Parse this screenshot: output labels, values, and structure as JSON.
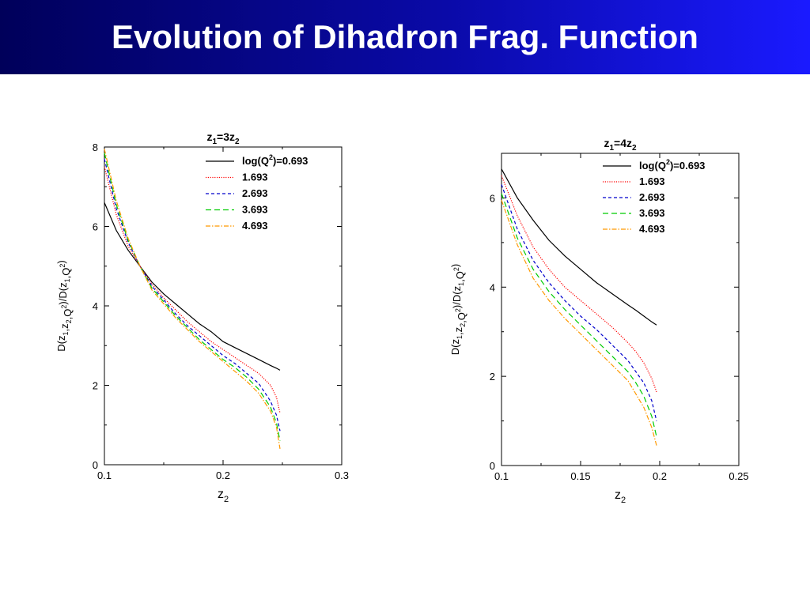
{
  "slide": {
    "title": "Evolution of Dihadron Frag. Function"
  },
  "chart_data": [
    {
      "type": "line",
      "title": {
        "base": "z",
        "sub1": "1",
        "mid": "=3z",
        "sub2": "2"
      },
      "xlabel": {
        "base": "z",
        "sub": "2"
      },
      "ylabel": "D(z1,z2,Q2)/D(z1,Q2)",
      "xlim": [
        0.1,
        0.3
      ],
      "ylim": [
        0,
        8
      ],
      "xticks": [
        0.1,
        0.2,
        0.3
      ],
      "xtick_labels": [
        "0.1",
        "0.2",
        "0.3"
      ],
      "yticks": [
        0,
        2,
        4,
        6,
        8
      ],
      "ytick_labels": [
        "0",
        "2",
        "4",
        "6",
        "8"
      ],
      "grid": false,
      "legend_position": "top-right",
      "x": [
        0.1,
        0.11,
        0.12,
        0.13,
        0.14,
        0.15,
        0.16,
        0.17,
        0.18,
        0.19,
        0.2,
        0.21,
        0.22,
        0.23,
        0.24,
        0.245,
        0.248
      ],
      "series": [
        {
          "name": "log(Q2)=0.693",
          "legend_label": {
            "pre": "log(Q",
            "sup": "2",
            "post": ")=0.693"
          },
          "color": "#000000",
          "dash": "",
          "values": [
            6.6,
            5.9,
            5.4,
            5.0,
            4.6,
            4.3,
            4.05,
            3.8,
            3.55,
            3.35,
            3.1,
            2.95,
            2.8,
            2.65,
            2.5,
            2.43,
            2.38
          ]
        },
        {
          "name": "1.693",
          "color": "#ff0000",
          "dash": "1.2 1.6",
          "values": [
            7.5,
            6.3,
            5.5,
            5.0,
            4.55,
            4.2,
            3.9,
            3.6,
            3.35,
            3.1,
            2.9,
            2.7,
            2.5,
            2.3,
            2.0,
            1.7,
            1.3
          ]
        },
        {
          "name": "2.693",
          "color": "#0000cc",
          "dash": "4 3",
          "values": [
            7.7,
            6.45,
            5.6,
            5.0,
            4.5,
            4.15,
            3.8,
            3.5,
            3.25,
            3.0,
            2.75,
            2.55,
            2.3,
            2.05,
            1.6,
            1.25,
            0.85
          ]
        },
        {
          "name": "3.693",
          "color": "#00cc00",
          "dash": "7 4",
          "values": [
            7.85,
            6.55,
            5.65,
            5.0,
            4.45,
            4.1,
            3.75,
            3.45,
            3.15,
            2.9,
            2.65,
            2.45,
            2.2,
            1.9,
            1.45,
            1.05,
            0.6
          ]
        },
        {
          "name": "4.693",
          "color": "#ff9900",
          "dash": "6 2 1.5 2",
          "values": [
            7.95,
            6.65,
            5.7,
            5.0,
            4.4,
            4.05,
            3.7,
            3.4,
            3.1,
            2.85,
            2.6,
            2.35,
            2.1,
            1.8,
            1.35,
            0.95,
            0.4
          ]
        }
      ]
    },
    {
      "type": "line",
      "title": {
        "base": "z",
        "sub1": "1",
        "mid": "=4z",
        "sub2": "2"
      },
      "xlabel": {
        "base": "z",
        "sub": "2"
      },
      "ylabel": "D(z1,z2,Q2)/D(z1,Q2)",
      "xlim": [
        0.1,
        0.25
      ],
      "ylim": [
        0,
        7
      ],
      "xticks": [
        0.1,
        0.15,
        0.2,
        0.25
      ],
      "xtick_labels": [
        "0.1",
        "0.15",
        "0.2",
        "0.25"
      ],
      "yticks": [
        0,
        2,
        4,
        6
      ],
      "ytick_labels": [
        "0",
        "2",
        "4",
        "6"
      ],
      "grid": false,
      "legend_position": "top-right",
      "x": [
        0.1,
        0.11,
        0.12,
        0.13,
        0.14,
        0.15,
        0.16,
        0.17,
        0.18,
        0.185,
        0.19,
        0.195,
        0.198
      ],
      "series": [
        {
          "name": "log(Q2)=0.693",
          "legend_label": {
            "pre": "log(Q",
            "sup": "2",
            "post": ")=0.693"
          },
          "color": "#000000",
          "dash": "",
          "values": [
            6.65,
            6.0,
            5.5,
            5.05,
            4.7,
            4.4,
            4.1,
            3.85,
            3.6,
            3.48,
            3.35,
            3.22,
            3.15
          ]
        },
        {
          "name": "1.693",
          "color": "#ff0000",
          "dash": "1.2 1.6",
          "values": [
            6.5,
            5.6,
            4.9,
            4.4,
            4.0,
            3.7,
            3.4,
            3.1,
            2.75,
            2.55,
            2.3,
            1.95,
            1.65
          ]
        },
        {
          "name": "2.693",
          "color": "#0000cc",
          "dash": "4 3",
          "values": [
            6.3,
            5.3,
            4.6,
            4.1,
            3.7,
            3.35,
            3.05,
            2.7,
            2.35,
            2.1,
            1.85,
            1.45,
            1.0
          ]
        },
        {
          "name": "3.693",
          "color": "#00cc00",
          "dash": "7 4",
          "values": [
            6.1,
            5.1,
            4.4,
            3.9,
            3.5,
            3.15,
            2.8,
            2.45,
            2.1,
            1.85,
            1.55,
            1.1,
            0.65
          ]
        },
        {
          "name": "4.693",
          "color": "#ff9900",
          "dash": "6 2 1.5 2",
          "values": [
            5.95,
            4.95,
            4.2,
            3.7,
            3.3,
            2.95,
            2.6,
            2.25,
            1.9,
            1.6,
            1.3,
            0.85,
            0.45
          ]
        }
      ]
    }
  ]
}
